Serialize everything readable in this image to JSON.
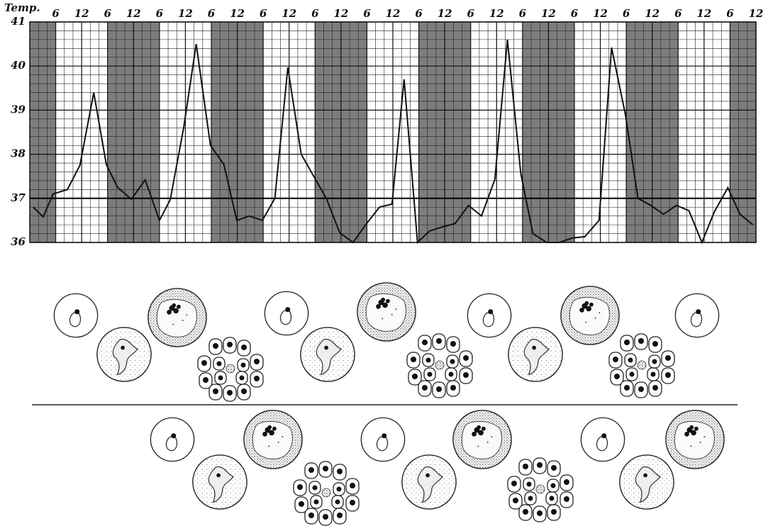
{
  "chart_data": {
    "type": "line",
    "y_label": "Temp.",
    "xlim": [
      0,
      168
    ],
    "xticks": [
      6,
      12,
      {
        "value": 18,
        "label": "6"
      },
      {
        "value": 24,
        "label": "12"
      },
      {
        "value": 30,
        "label": "6"
      },
      {
        "value": 36,
        "label": "12"
      },
      {
        "value": 42,
        "label": "6"
      },
      {
        "value": 48,
        "label": "12"
      },
      {
        "value": 54,
        "label": "6"
      },
      {
        "value": 60,
        "label": "12"
      },
      {
        "value": 66,
        "label": "6"
      },
      {
        "value": 72,
        "label": "12"
      },
      {
        "value": 78,
        "label": "6"
      },
      {
        "value": 84,
        "label": "12"
      },
      {
        "value": 90,
        "label": "6"
      },
      {
        "value": 96,
        "label": "12"
      },
      {
        "value": 102,
        "label": "6"
      },
      {
        "value": 108,
        "label": "12"
      },
      {
        "value": 114,
        "label": "6"
      },
      {
        "value": 120,
        "label": "12"
      },
      {
        "value": 126,
        "label": "6"
      },
      {
        "value": 132,
        "label": "12"
      },
      {
        "value": 138,
        "label": "6"
      },
      {
        "value": 144,
        "label": "12"
      },
      {
        "value": 150,
        "label": "6"
      },
      {
        "value": 156,
        "label": "12"
      },
      {
        "value": 162,
        "label": "6"
      },
      {
        "value": 168,
        "label": "12"
      }
    ],
    "ylim": [
      36,
      41
    ],
    "yticks": [
      36,
      37,
      38,
      39,
      40,
      41
    ],
    "grid": true,
    "minor_grid": {
      "x": 2,
      "y": 0.2
    },
    "reference_line": 37,
    "shaded_ranges": [
      [
        0,
        6
      ],
      [
        18,
        30
      ],
      [
        42,
        54
      ],
      [
        66,
        78
      ],
      [
        90,
        102
      ],
      [
        114,
        126
      ],
      [
        138,
        150
      ],
      [
        162,
        168
      ]
    ],
    "shade_color": "#7d7d7d",
    "x": [
      0.8,
      3.1,
      5.4,
      8.7,
      11.6,
      14.8,
      17.7,
      20.3,
      23.5,
      26.7,
      30,
      32.5,
      35.6,
      38.5,
      41.8,
      44.9,
      47.9,
      50.8,
      53.8,
      56.7,
      59.7,
      62.8,
      65.8,
      68.6,
      71.7,
      74.8,
      77.7,
      80.9,
      83.8,
      86.6,
      89.7,
      92.5,
      95.4,
      98.4,
      101.5,
      104.5,
      107.6,
      110.5,
      113.6,
      116.4,
      119.6,
      122.5,
      125.5,
      128.4,
      131.7,
      134.6,
      137.8,
      140.7,
      143.7,
      146.6,
      149.6,
      152.5,
      155.5,
      158.4,
      161.5,
      164.3,
      167.3
    ],
    "series": [
      {
        "color": "#111111",
        "values": [
          36.8,
          36.58,
          37.1,
          37.2,
          37.75,
          39.4,
          37.77,
          37.25,
          36.98,
          37.42,
          36.5,
          36.97,
          38.6,
          40.5,
          38.2,
          37.77,
          36.5,
          36.6,
          36.5,
          37,
          39.97,
          38,
          37.48,
          37,
          36.22,
          36,
          36.4,
          36.8,
          36.87,
          39.7,
          36,
          36.26,
          36.35,
          36.43,
          36.84,
          36.6,
          37.43,
          40.6,
          37.56,
          36.2,
          36,
          36,
          36.1,
          36.13,
          36.5,
          40.42,
          38.9,
          37,
          36.84,
          36.64,
          36.84,
          36.72,
          36,
          36.7,
          37.24,
          36.64,
          36.4
        ]
      }
    ]
  }
}
